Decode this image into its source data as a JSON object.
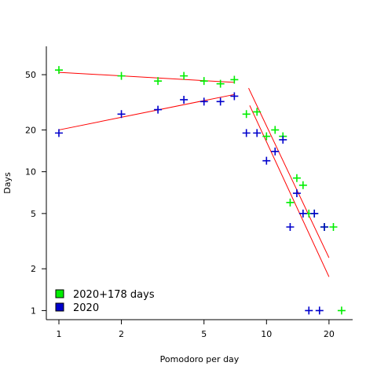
{
  "chart_data": {
    "type": "scatter",
    "x_scale": "log",
    "y_scale": "log",
    "xlabel": "Pomodoro per day",
    "ylabel": "Days",
    "xlim": [
      0.87,
      26
    ],
    "ylim": [
      0.86,
      80
    ],
    "x_ticks": [
      1,
      2,
      5,
      10,
      20
    ],
    "y_ticks": [
      1,
      2,
      5,
      10,
      20,
      50
    ],
    "grid": false,
    "legend_position": "bottom-left",
    "series": [
      {
        "name": "2020+178 days",
        "color": "#00ee00",
        "marker": "+",
        "points": [
          [
            1,
            54
          ],
          [
            2,
            49
          ],
          [
            3,
            45
          ],
          [
            4,
            49
          ],
          [
            5,
            45
          ],
          [
            6,
            43
          ],
          [
            7,
            46
          ],
          [
            8,
            26
          ],
          [
            9,
            27
          ],
          [
            10,
            18
          ],
          [
            11,
            20
          ],
          [
            12,
            18
          ],
          [
            13,
            6
          ],
          [
            14,
            9
          ],
          [
            15,
            8
          ],
          [
            16,
            5
          ],
          [
            17,
            5
          ],
          [
            19,
            4
          ],
          [
            21,
            4
          ],
          [
            23,
            1
          ]
        ]
      },
      {
        "name": "2020",
        "color": "#0000cc",
        "marker": "+",
        "points": [
          [
            1,
            19
          ],
          [
            2,
            26
          ],
          [
            3,
            28
          ],
          [
            4,
            33
          ],
          [
            5,
            32
          ],
          [
            6,
            32
          ],
          [
            7,
            35
          ],
          [
            8,
            19
          ],
          [
            9,
            19
          ],
          [
            10,
            12
          ],
          [
            11,
            14
          ],
          [
            12,
            17
          ],
          [
            13,
            4
          ],
          [
            14,
            7
          ],
          [
            15,
            5
          ],
          [
            16,
            1
          ],
          [
            17,
            5
          ],
          [
            18,
            1
          ],
          [
            19,
            4
          ]
        ]
      }
    ],
    "fit_lines": [
      {
        "color": "#ff0000",
        "from": [
          1,
          52
        ],
        "to": [
          7,
          44
        ]
      },
      {
        "color": "#ff0000",
        "from": [
          1,
          20
        ],
        "to": [
          7,
          36
        ]
      },
      {
        "color": "#ff0000",
        "from": [
          8.2,
          40
        ],
        "to": [
          20,
          2.4
        ]
      },
      {
        "color": "#ff0000",
        "from": [
          8.3,
          30
        ],
        "to": [
          20,
          1.75
        ]
      }
    ]
  }
}
